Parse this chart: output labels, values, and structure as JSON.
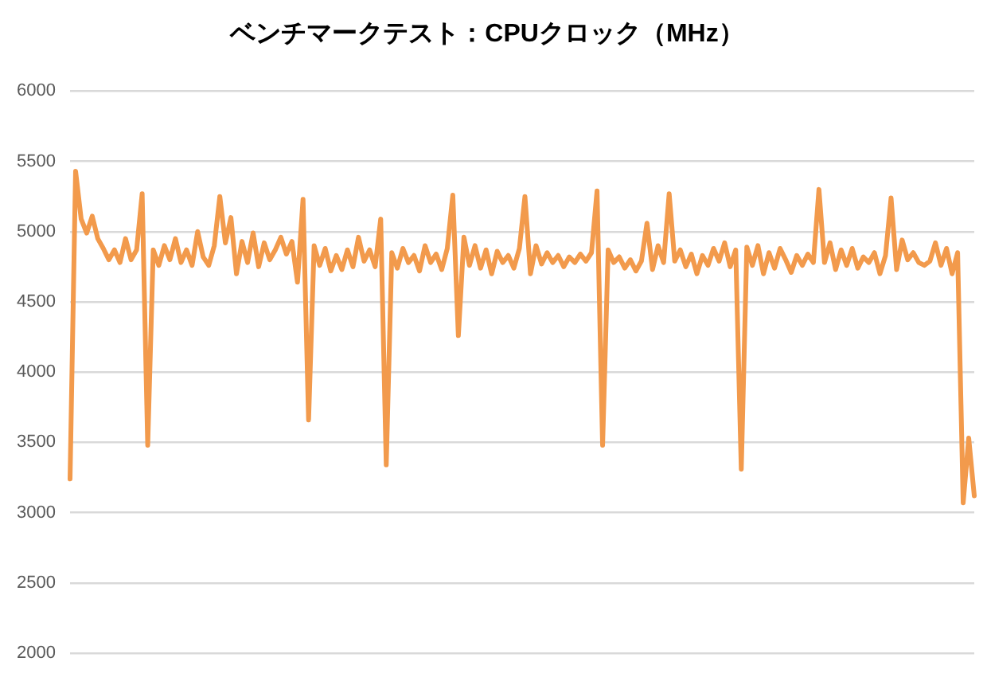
{
  "chart_data": {
    "type": "line",
    "title": "ベンチマークテスト：CPUクロック（MHz）",
    "categories": [
      null,
      null,
      null,
      null,
      null,
      null,
      null,
      null,
      null,
      null,
      null,
      null,
      null,
      null,
      null,
      null,
      null,
      null,
      null,
      null,
      null,
      null,
      null,
      null,
      null,
      null,
      null,
      null,
      null,
      null,
      null,
      null,
      null,
      null,
      null,
      null,
      null,
      null,
      null,
      null,
      null,
      null,
      null,
      null,
      null,
      null,
      null,
      null,
      null,
      null,
      null,
      null,
      null,
      null,
      null,
      null,
      null,
      null,
      null,
      null,
      null,
      null,
      null,
      null,
      null,
      null,
      null,
      null,
      null,
      null,
      null,
      null,
      null,
      null,
      null,
      null,
      null,
      null,
      null,
      null,
      null,
      null,
      null,
      null,
      null,
      null,
      null,
      null,
      null,
      null,
      null,
      null,
      null,
      null,
      null,
      null,
      null,
      null,
      null,
      null,
      null,
      null,
      null,
      null,
      null,
      null,
      null,
      null,
      null,
      null,
      null,
      null,
      null,
      null,
      null,
      null,
      null,
      null,
      null,
      null,
      null,
      null,
      null,
      null,
      null,
      null,
      null,
      null,
      null,
      null,
      null,
      null,
      null,
      null,
      null,
      null,
      null,
      null,
      null,
      null,
      null,
      null,
      null,
      null,
      null,
      null,
      null,
      null,
      null,
      null,
      null,
      null,
      null,
      null,
      null,
      null,
      null,
      null,
      null,
      null,
      null,
      null,
      null,
      null
    ],
    "values": [
      3240,
      5430,
      5090,
      4990,
      5110,
      4950,
      4880,
      4800,
      4870,
      4780,
      4950,
      4800,
      4870,
      5270,
      3480,
      4870,
      4760,
      4900,
      4800,
      4950,
      4780,
      4870,
      4760,
      5000,
      4820,
      4760,
      4900,
      5250,
      4920,
      5100,
      4700,
      4930,
      4780,
      4990,
      4750,
      4920,
      4800,
      4870,
      4960,
      4840,
      4930,
      4640,
      5230,
      3660,
      4900,
      4760,
      4880,
      4720,
      4830,
      4730,
      4870,
      4750,
      4960,
      4790,
      4870,
      4750,
      5090,
      3340,
      4850,
      4740,
      4880,
      4780,
      4830,
      4720,
      4900,
      4780,
      4840,
      4730,
      4880,
      5260,
      4260,
      4960,
      4760,
      4900,
      4740,
      4870,
      4700,
      4860,
      4780,
      4830,
      4740,
      4880,
      5250,
      4700,
      4900,
      4770,
      4850,
      4780,
      4830,
      4750,
      4820,
      4780,
      4840,
      4790,
      4850,
      5290,
      3480,
      4870,
      4780,
      4820,
      4740,
      4800,
      4720,
      4790,
      5060,
      4730,
      4900,
      4780,
      5270,
      4790,
      4870,
      4750,
      4840,
      4700,
      4830,
      4760,
      4880,
      4790,
      4920,
      4750,
      4870,
      3310,
      4890,
      4760,
      4900,
      4700,
      4850,
      4740,
      4880,
      4800,
      4710,
      4830,
      4760,
      4840,
      4780,
      5300,
      4780,
      4920,
      4730,
      4870,
      4760,
      4880,
      4740,
      4820,
      4780,
      4850,
      4700,
      4830,
      5240,
      4730,
      4940,
      4800,
      4850,
      4780,
      4760,
      4790,
      4920,
      4760,
      4880,
      4700,
      4850,
      3070,
      3530,
      3120
    ],
    "color": "#f29a4c",
    "ylim": [
      2000,
      6000
    ],
    "yticks": [
      2000,
      2500,
      3000,
      3500,
      4000,
      4500,
      5000,
      5500,
      6000
    ],
    "grid": "y",
    "tick_labels": "y"
  }
}
